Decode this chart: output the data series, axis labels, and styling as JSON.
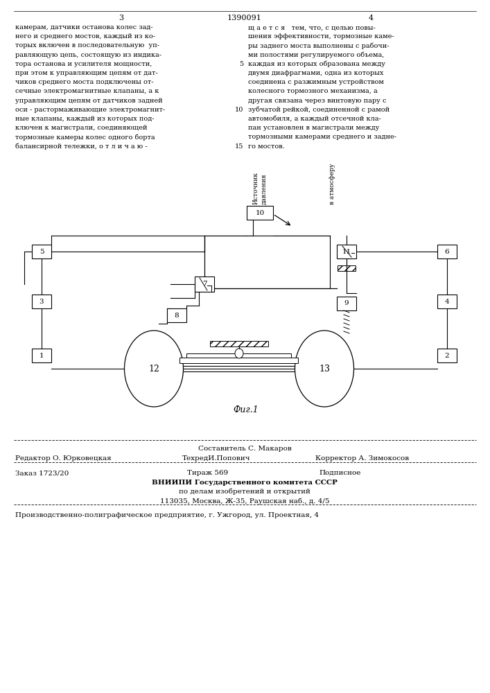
{
  "page_number_left": "3",
  "page_number_center": "1390091",
  "page_number_right": "4",
  "text_left_lines": [
    "камерам, датчики останова колес зад-",
    "него и среднего мостов, каждый из ко-",
    "торых включен в последовательную  уп-",
    "равляющую цепь, состоящую из индика-",
    "тора останова и усилителя мощности,",
    "при этом к управляющим цепям от дат-",
    "чиков среднего моста подключены от-",
    "сечные электромагнитные клапаны, а к",
    "управляющим цепям от датчиков задней",
    "оси - растормаживающие электромагнит-",
    "ные клапаны, каждый из которых под-",
    "ключен к магистрали, соединяющей",
    "тормозные камеры колес одного борта",
    "балансирной тележки, о т л и ч а ю -"
  ],
  "text_right_lines": [
    "щ а е т с я   тем, что, с целью повы-",
    "шения эффективности, тормозные каме-",
    "ры заднего моста выполнены с рабочи-",
    "ми полостями регулируемого объема,",
    "каждая из которых образована между",
    "двумя диафрагмами, одна из которых",
    "соединена с разжимным устройством",
    "колесного тормозного механизма, а",
    "другая связана через винтовую пару с",
    "зубчатой рейкой, соединенной с рамой",
    "автомобиля, а каждый отсечной кла-",
    "пан установлен в магистрали между",
    "тормозными камерами среднего и задне-",
    "го мостов."
  ],
  "fig_caption": "Фиг.1",
  "footer_composer": "Составитель С. Макаров",
  "footer_editor": "Редактор О. Юрковецкая",
  "footer_techred": "ТехредИ.Попович",
  "footer_corrector": "Корректор А. Зимокосов",
  "footer_order": "Заказ 1723/20",
  "footer_tirazh": "Тираж 569",
  "footer_podpisnoe": "Подписное",
  "footer_org1": "ВНИИПИ Государственного комитета СССР",
  "footer_org2": "по делам изобретений и открытий",
  "footer_org3": "113035, Москва, Ж-35, Раушская наб., д. 4/5",
  "footer_prod": "Производственно-полиграфическое предприятие, г. Ужгород, ул. Проектная, 4",
  "bg_color": "#ffffff",
  "line_color": "#000000",
  "text_color": "#000000"
}
